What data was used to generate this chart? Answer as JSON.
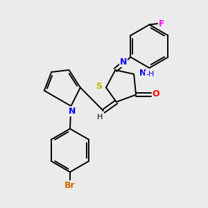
{
  "background_color": "#ebebeb",
  "bond_color": "#000000",
  "atom_colors": {
    "N": "#0000ff",
    "S": "#b8b800",
    "O": "#ff0000",
    "F": "#ff00ff",
    "Br": "#cc6600",
    "H_label": "#000000",
    "C": "#000000"
  },
  "figsize": [
    3.0,
    3.0
  ],
  "dpi": 100
}
